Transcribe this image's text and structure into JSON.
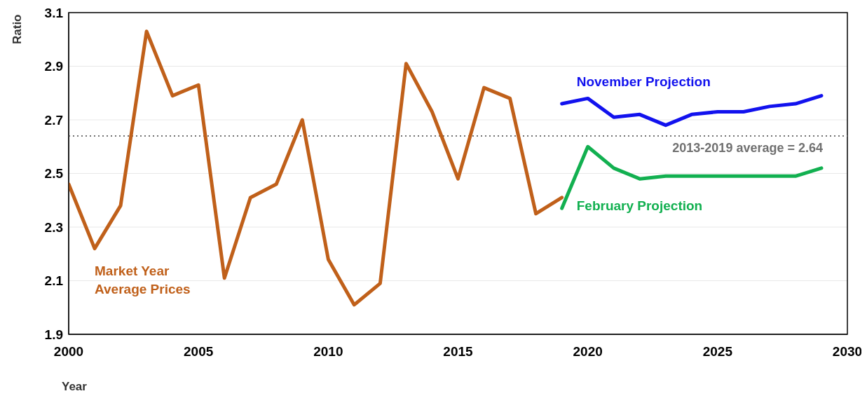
{
  "chart_data": {
    "type": "line",
    "xlabel": "Year",
    "ylabel": "Ratio",
    "series": [
      {
        "name": "Market Year Average Prices",
        "color": "#c0601a",
        "x": [
          2000,
          2001,
          2002,
          2003,
          2004,
          2005,
          2006,
          2007,
          2008,
          2009,
          2010,
          2011,
          2012,
          2013,
          2014,
          2015,
          2016,
          2017,
          2018,
          2019
        ],
        "values": [
          2.46,
          2.22,
          2.38,
          3.03,
          2.79,
          2.83,
          2.11,
          2.41,
          2.46,
          2.7,
          2.18,
          2.01,
          2.09,
          2.91,
          2.73,
          2.48,
          2.82,
          2.78,
          2.35,
          2.41
        ]
      },
      {
        "name": "November Projection",
        "color": "#1212ee",
        "x": [
          2019,
          2020,
          2021,
          2022,
          2023,
          2024,
          2025,
          2026,
          2027,
          2028,
          2029
        ],
        "values": [
          2.76,
          2.78,
          2.71,
          2.72,
          2.68,
          2.72,
          2.73,
          2.73,
          2.75,
          2.76,
          2.79
        ]
      },
      {
        "name": "February Projection",
        "color": "#12b050",
        "x": [
          2019,
          2020,
          2021,
          2022,
          2023,
          2024,
          2025,
          2026,
          2027,
          2028,
          2029
        ],
        "values": [
          2.37,
          2.6,
          2.52,
          2.48,
          2.49,
          2.49,
          2.49,
          2.49,
          2.49,
          2.49,
          2.52
        ]
      }
    ],
    "xlim": [
      2000,
      2030
    ],
    "xticks": [
      2000,
      2005,
      2010,
      2015,
      2020,
      2025,
      2030
    ],
    "ylim": [
      1.9,
      3.1
    ],
    "yticks": [
      1.9,
      2.1,
      2.3,
      2.5,
      2.7,
      2.9,
      3.1
    ],
    "ref_lines": [
      {
        "axis": "y",
        "value": 2.64,
        "label": "2013-2019 average = 2.64",
        "color": "#707070",
        "line_style": "dotted"
      }
    ],
    "grid": "y",
    "marker": "none",
    "line_style": "solid"
  }
}
